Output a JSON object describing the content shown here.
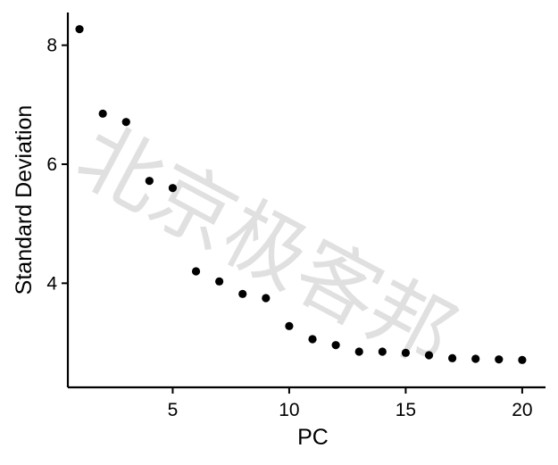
{
  "watermark": {
    "text": "北京极客邦"
  },
  "chart_data": {
    "type": "scatter",
    "title": "",
    "xlabel": "PC",
    "ylabel": "Standard Deviation",
    "xlim": [
      0.5,
      21
    ],
    "ylim": [
      2.25,
      8.55
    ],
    "x_ticks": [
      5,
      10,
      15,
      20
    ],
    "y_ticks": [
      4,
      6,
      8
    ],
    "grid": false,
    "legend": "none",
    "point_color": "#000000",
    "x": [
      1,
      2,
      3,
      4,
      5,
      6,
      7,
      8,
      9,
      10,
      11,
      12,
      13,
      14,
      15,
      16,
      17,
      18,
      19,
      20
    ],
    "y": [
      8.27,
      6.85,
      6.71,
      5.72,
      5.6,
      4.2,
      4.03,
      3.82,
      3.75,
      3.28,
      3.06,
      2.96,
      2.85,
      2.85,
      2.83,
      2.79,
      2.74,
      2.73,
      2.72,
      2.71
    ]
  }
}
